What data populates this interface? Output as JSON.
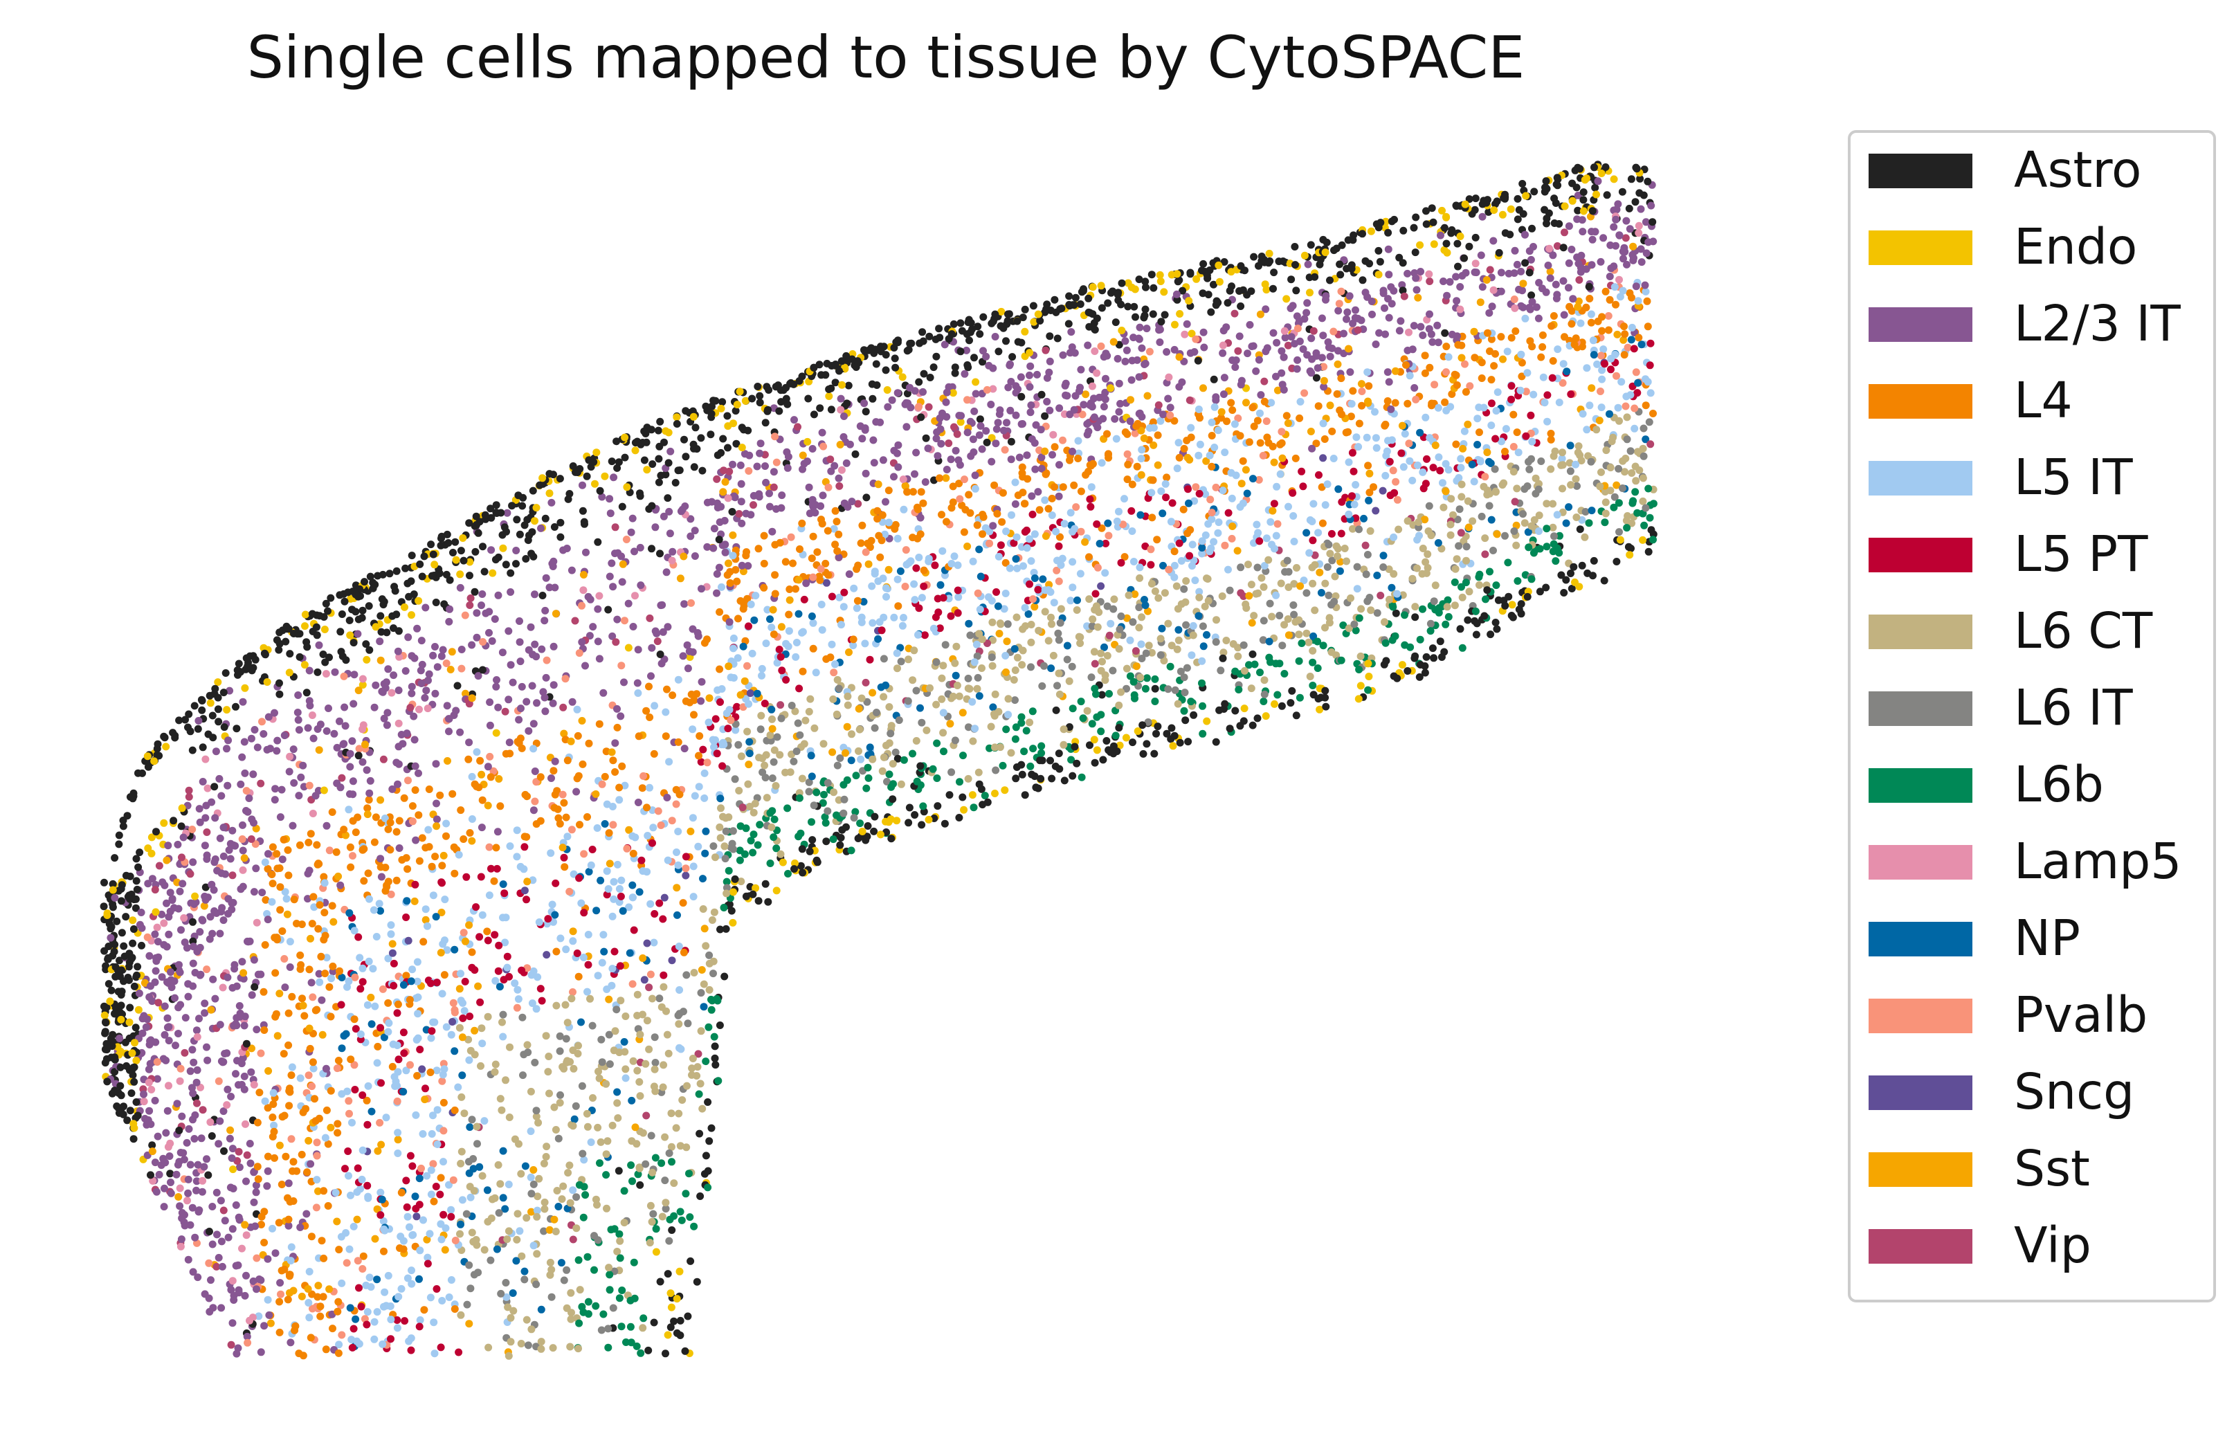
{
  "chart_data": {
    "type": "scatter",
    "title": "Single cells mapped to tissue by CytoSPACE",
    "xlabel": "",
    "ylabel": "",
    "axes_visible": false,
    "grid": false,
    "legend_placement": "outside-right",
    "categories": [
      {
        "name": "Astro",
        "color": "#222222"
      },
      {
        "name": "Endo",
        "color": "#F3C300"
      },
      {
        "name": "L2/3 IT",
        "color": "#875692"
      },
      {
        "name": "L4",
        "color": "#F38400"
      },
      {
        "name": "L5 IT",
        "color": "#A1CAF1"
      },
      {
        "name": "L5 PT",
        "color": "#BE0032"
      },
      {
        "name": "L6 CT",
        "color": "#C2B280"
      },
      {
        "name": "L6 IT",
        "color": "#848482"
      },
      {
        "name": "L6b",
        "color": "#008856"
      },
      {
        "name": "Lamp5",
        "color": "#E68FAC"
      },
      {
        "name": "NP",
        "color": "#0067A5"
      },
      {
        "name": "Pvalb",
        "color": "#F99379"
      },
      {
        "name": "Sncg",
        "color": "#604E97"
      },
      {
        "name": "Sst",
        "color": "#F6A600"
      },
      {
        "name": "Vip",
        "color": "#B3446C"
      }
    ]
  }
}
